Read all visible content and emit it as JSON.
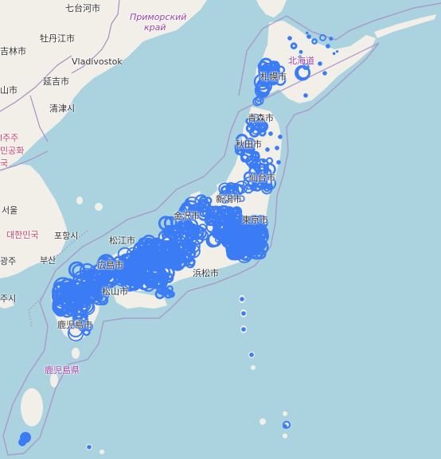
{
  "colors": {
    "water": "#aad3df",
    "land": "#f2efe9",
    "border": "#a98ec4",
    "marker": "#3b7cf5"
  },
  "labels": {
    "qitaihe": "七台河市",
    "primorsky": "Приморский",
    "krai": "край",
    "mudanjiang": "牡丹江市",
    "jilin": "吉林市",
    "vladivostok": "Vladivostok",
    "yanji": "延吉市",
    "shan": "山市",
    "qingjin": "清津시",
    "jeju_frag": "l주주",
    "republic_frag": "민공화",
    "guk_frag": "국",
    "seoul": "서울",
    "korea": "대한민국",
    "pohang": "포항시",
    "gwangju": "광주",
    "busan": "부산",
    "jeju_city": "주시",
    "hokkaido": "北海道",
    "sapporo": "札幌市",
    "aomori": "青森市",
    "akita": "秋田市",
    "sendai": "仙台市",
    "niigata": "新潟市",
    "kanazawa": "金沢市",
    "tokyo": "東京市",
    "matsue": "松江市",
    "hiroshima": "広島市",
    "hamamatsu": "浜松市",
    "matsuyama": "松山市",
    "kagoshima_city": "鹿児島市",
    "kagoshima_pref": "鹿児島県"
  }
}
